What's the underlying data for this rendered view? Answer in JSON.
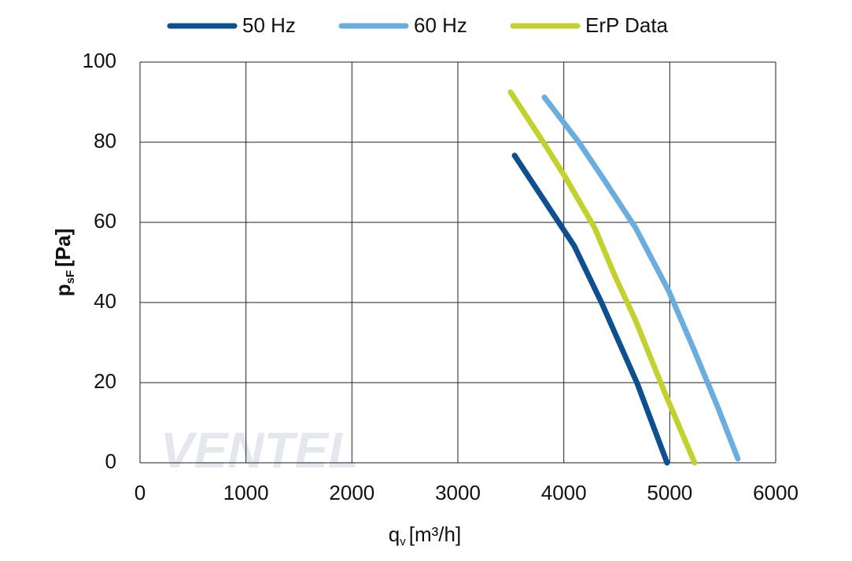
{
  "chart_data": {
    "type": "line",
    "x_label": {
      "main": "q",
      "sub": "v",
      "unit": "[m³/h]"
    },
    "y_label": {
      "main": "p",
      "sub": "sF",
      "unit": "[Pa]"
    },
    "watermark": "VENTEL",
    "xlim": [
      0,
      6000
    ],
    "xticks": [
      0,
      1000,
      2000,
      3000,
      4000,
      5000,
      6000
    ],
    "ylim": [
      0,
      100
    ],
    "yticks": [
      0,
      20,
      40,
      60,
      80,
      100
    ],
    "grid": true,
    "legend": "top",
    "series": [
      {
        "name": "50 Hz",
        "color": "#0d4f8f",
        "x": [
          3535,
          4099,
          4359,
          4693,
          4975
        ],
        "values": [
          76.7,
          54.1,
          39.8,
          19.8,
          0
        ]
      },
      {
        "name": "60 Hz",
        "color": "#6aaee0",
        "x": [
          3817,
          4136,
          4366,
          4678,
          4990,
          5213,
          5450,
          5643
        ],
        "values": [
          91.2,
          80.2,
          71.2,
          58.6,
          42.9,
          29.2,
          14.1,
          1
        ]
      },
      {
        "name": "ErP Data",
        "color": "#c3d12e",
        "x": [
          3497,
          3802,
          4025,
          4292,
          4478,
          4678,
          4953,
          5235
        ],
        "values": [
          92.5,
          80.2,
          70.8,
          58.6,
          46.9,
          35.5,
          17.5,
          0
        ]
      }
    ]
  }
}
